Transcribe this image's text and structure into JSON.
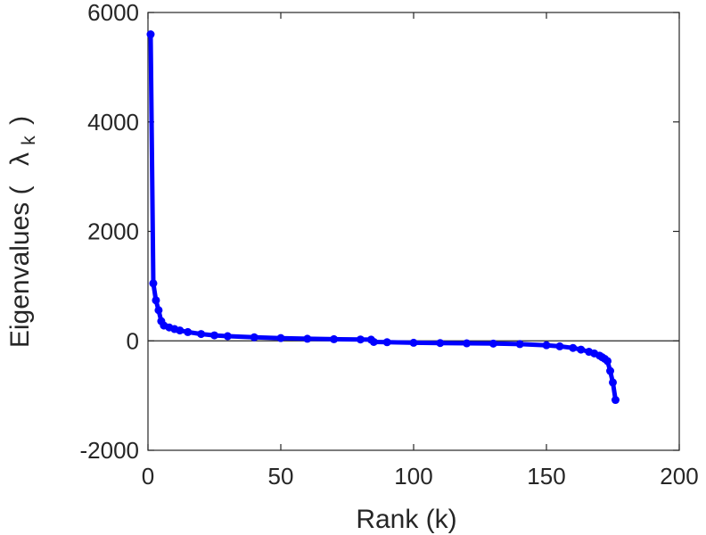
{
  "chart_data": {
    "type": "line",
    "xlabel": "Rank (k)",
    "ylabel_prefix": "Eigenvalues (",
    "ylabel_symbol": "λ",
    "ylabel_subscript": "k",
    "ylabel_suffix": ")",
    "xlim": [
      0,
      200
    ],
    "ylim": [
      -2000,
      6000
    ],
    "xticks": [
      0,
      50,
      100,
      150,
      200
    ],
    "yticks": [
      -2000,
      0,
      2000,
      4000,
      6000
    ],
    "grid": false,
    "zero_line": true,
    "series": [
      {
        "color": "#0000ff",
        "marker": "circle",
        "x": [
          1,
          2,
          3,
          4,
          5,
          6,
          8,
          10,
          12,
          15,
          20,
          25,
          30,
          40,
          50,
          60,
          70,
          80,
          84,
          85,
          90,
          100,
          110,
          120,
          130,
          140,
          150,
          155,
          160,
          163,
          166,
          168,
          170,
          171,
          172,
          173,
          174,
          175,
          176
        ],
        "y": [
          5600,
          1050,
          740,
          560,
          360,
          280,
          245,
          215,
          190,
          160,
          125,
          100,
          85,
          65,
          50,
          38,
          30,
          25,
          22,
          -20,
          -25,
          -35,
          -40,
          -45,
          -50,
          -60,
          -80,
          -100,
          -130,
          -160,
          -200,
          -230,
          -270,
          -300,
          -330,
          -370,
          -550,
          -760,
          -1080
        ]
      }
    ]
  }
}
